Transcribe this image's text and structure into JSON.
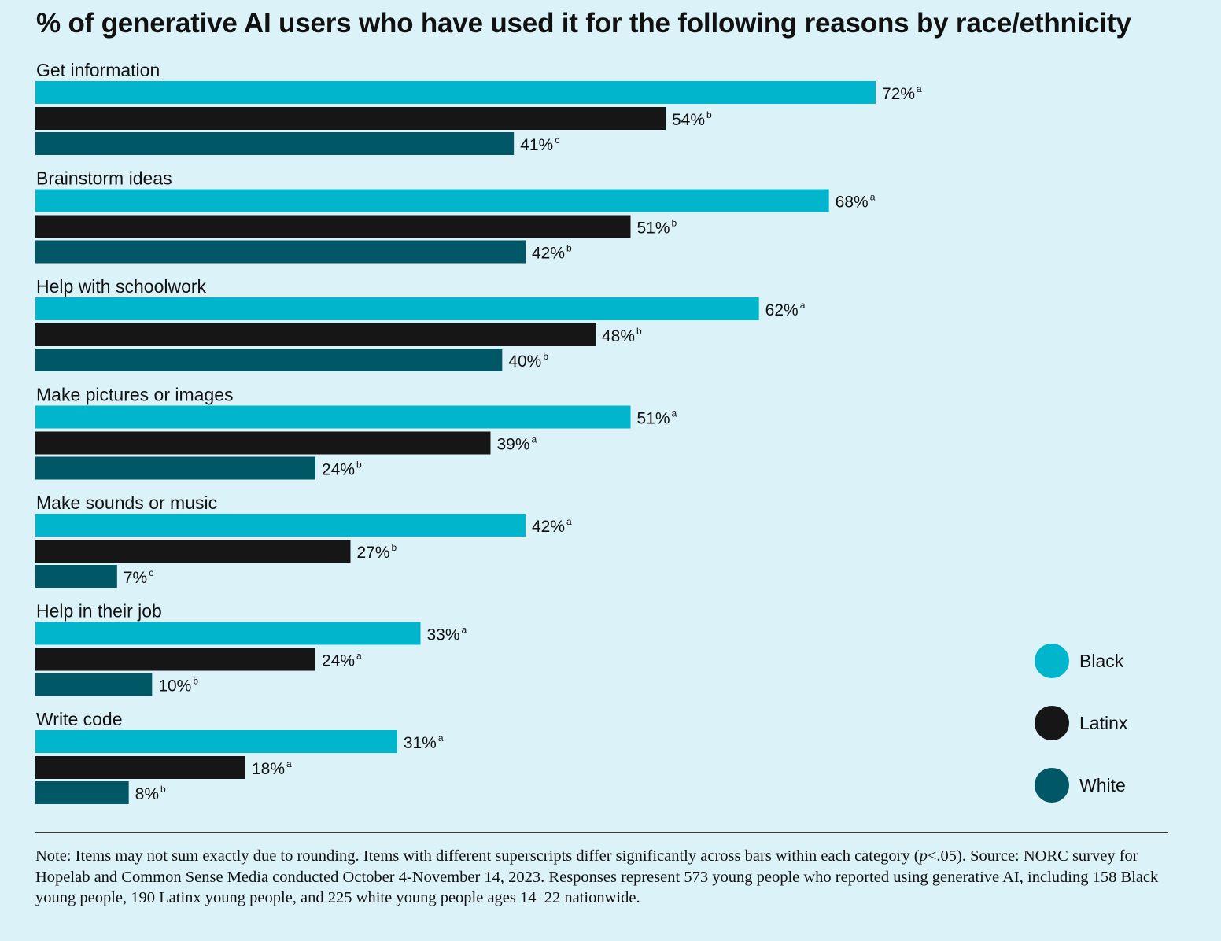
{
  "chart_data": {
    "type": "bar",
    "orientation": "horizontal",
    "title": "% of generative AI users who have used it for the following reasons by race/ethnicity",
    "categories": [
      "Get information",
      "Brainstorm ideas",
      "Help with schoolwork",
      "Make pictures or images",
      "Make sounds or music",
      "Help in their job",
      "Write code"
    ],
    "series": [
      {
        "name": "Black",
        "color": "#00b5cc",
        "values": [
          72,
          68,
          62,
          51,
          42,
          33,
          31
        ],
        "superscripts": [
          "a",
          "a",
          "a",
          "a",
          "a",
          "a",
          "a"
        ]
      },
      {
        "name": "Latinx",
        "color": "#161616",
        "values": [
          54,
          51,
          48,
          39,
          27,
          24,
          18
        ],
        "superscripts": [
          "b",
          "b",
          "b",
          "a",
          "b",
          "a",
          "a"
        ]
      },
      {
        "name": "White",
        "color": "#005766",
        "values": [
          41,
          42,
          40,
          24,
          7,
          10,
          8
        ],
        "superscripts": [
          "c",
          "b",
          "b",
          "b",
          "c",
          "b",
          "b"
        ]
      }
    ],
    "value_suffix": "%",
    "xlim": [
      0,
      100
    ],
    "grid": false,
    "legend_position": "right"
  },
  "note": {
    "prefix": "Note: Items may not sum exactly due to rounding. Items with different superscripts differ significantly across bars within each category (",
    "p_symbol": "p",
    "suffix": "<.05). Source: NORC survey for Hopelab and Common Sense Media conducted October 4-November 14, 2023. Responses represent 573 young people who reported using generative AI, including 158 Black young people, 190 Latinx young people, and 225 white young people ages 14–22 nationwide."
  }
}
